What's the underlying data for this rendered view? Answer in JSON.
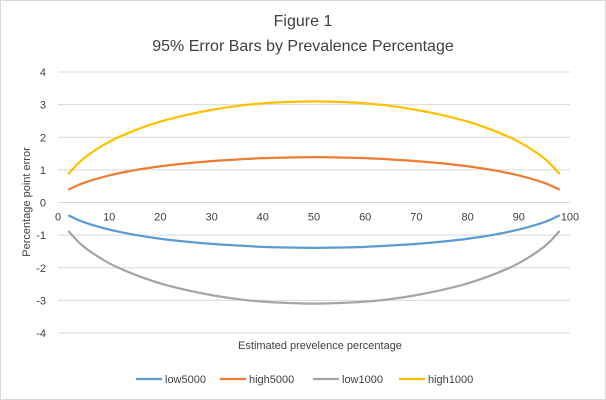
{
  "chart_data": {
    "type": "line",
    "title": "Figure 1",
    "subtitle": "95% Error Bars by Prevalence Percentage",
    "xlabel": "Estimated prevelence percentage",
    "ylabel": "Percentage point error",
    "xlim": [
      0,
      100
    ],
    "ylim": [
      -4,
      4
    ],
    "x_ticks": [
      "0",
      "10",
      "20",
      "30",
      "40",
      "50",
      "60",
      "70",
      "80",
      "90",
      "100"
    ],
    "y_ticks": [
      "4",
      "3",
      "2",
      "1",
      "0",
      "-1",
      "-2",
      "-3",
      "-4"
    ],
    "grid": true,
    "legend_position": "bottom",
    "x": [
      2,
      5,
      10,
      15,
      20,
      25,
      30,
      35,
      40,
      45,
      50,
      55,
      60,
      65,
      70,
      75,
      80,
      85,
      90,
      95,
      98
    ],
    "series": [
      {
        "name": "low5000",
        "color": "#5b9bd5",
        "values": [
          -0.39,
          -0.6,
          -0.83,
          -0.99,
          -1.11,
          -1.2,
          -1.27,
          -1.32,
          -1.36,
          -1.38,
          -1.39,
          -1.38,
          -1.36,
          -1.32,
          -1.27,
          -1.2,
          -1.11,
          -0.99,
          -0.83,
          -0.6,
          -0.39
        ]
      },
      {
        "name": "high5000",
        "color": "#ed7d31",
        "values": [
          0.39,
          0.6,
          0.83,
          0.99,
          1.11,
          1.2,
          1.27,
          1.32,
          1.36,
          1.38,
          1.39,
          1.38,
          1.36,
          1.32,
          1.27,
          1.2,
          1.11,
          0.99,
          0.83,
          0.6,
          0.39
        ]
      },
      {
        "name": "low1000",
        "color": "#a5a5a5",
        "values": [
          -0.87,
          -1.35,
          -1.86,
          -2.21,
          -2.48,
          -2.68,
          -2.84,
          -2.96,
          -3.04,
          -3.08,
          -3.1,
          -3.08,
          -3.04,
          -2.96,
          -2.84,
          -2.68,
          -2.48,
          -2.21,
          -1.86,
          -1.35,
          -0.87
        ]
      },
      {
        "name": "high1000",
        "color": "#ffc000",
        "values": [
          0.87,
          1.35,
          1.86,
          2.21,
          2.48,
          2.68,
          2.84,
          2.96,
          3.04,
          3.08,
          3.1,
          3.08,
          3.04,
          2.96,
          2.84,
          2.68,
          2.48,
          2.21,
          1.86,
          1.35,
          0.87
        ]
      }
    ]
  }
}
